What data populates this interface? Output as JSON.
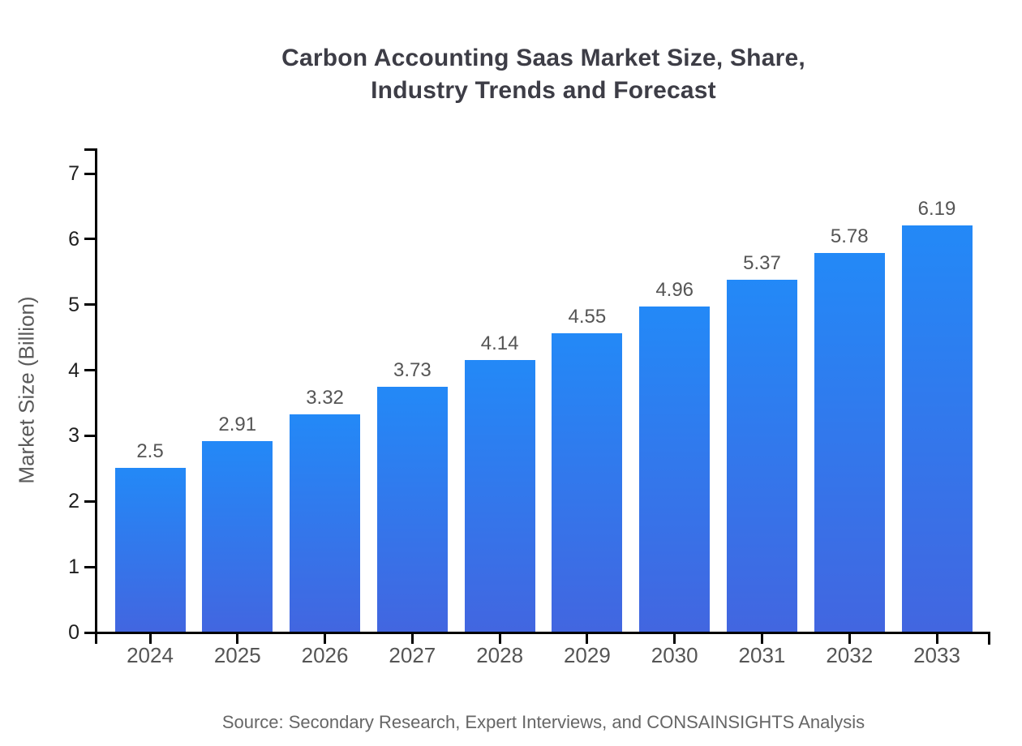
{
  "title": {
    "line1": "Carbon Accounting Saas Market Size, Share,",
    "line2": "Industry Trends and Forecast"
  },
  "source": "Source: Secondary Research, Expert Interviews, and CONSAINSIGHTS Analysis",
  "chart_data": {
    "type": "bar",
    "title": "Carbon Accounting Saas Market Size, Share, Industry Trends and Forecast",
    "categories": [
      "2024",
      "2025",
      "2026",
      "2027",
      "2028",
      "2029",
      "2030",
      "2031",
      "2032",
      "2033"
    ],
    "values": [
      2.5,
      2.91,
      3.32,
      3.73,
      4.14,
      4.55,
      4.96,
      5.37,
      5.78,
      6.19
    ],
    "value_labels": [
      "2.5",
      "2.91",
      "3.32",
      "3.73",
      "4.14",
      "4.55",
      "4.96",
      "5.37",
      "5.78",
      "6.19"
    ],
    "xlabel": "",
    "ylabel": "Market Size (Billion)",
    "ylim": [
      0,
      7
    ],
    "yticks": [
      0,
      1,
      2,
      3,
      4,
      5,
      6,
      7
    ],
    "grid": false,
    "legend": "none",
    "colors": {
      "bar_gradient_top": "#2389F7",
      "bar_gradient_bottom": "#4266E0",
      "axis": "#000000",
      "y_tick_label": "#1F1F1F",
      "x_tick_label": "#555555",
      "value_label": "#555555",
      "title": "#3D3D46",
      "ylabel": "#595959",
      "source": "#666666",
      "background": "#FFFFFF"
    }
  }
}
